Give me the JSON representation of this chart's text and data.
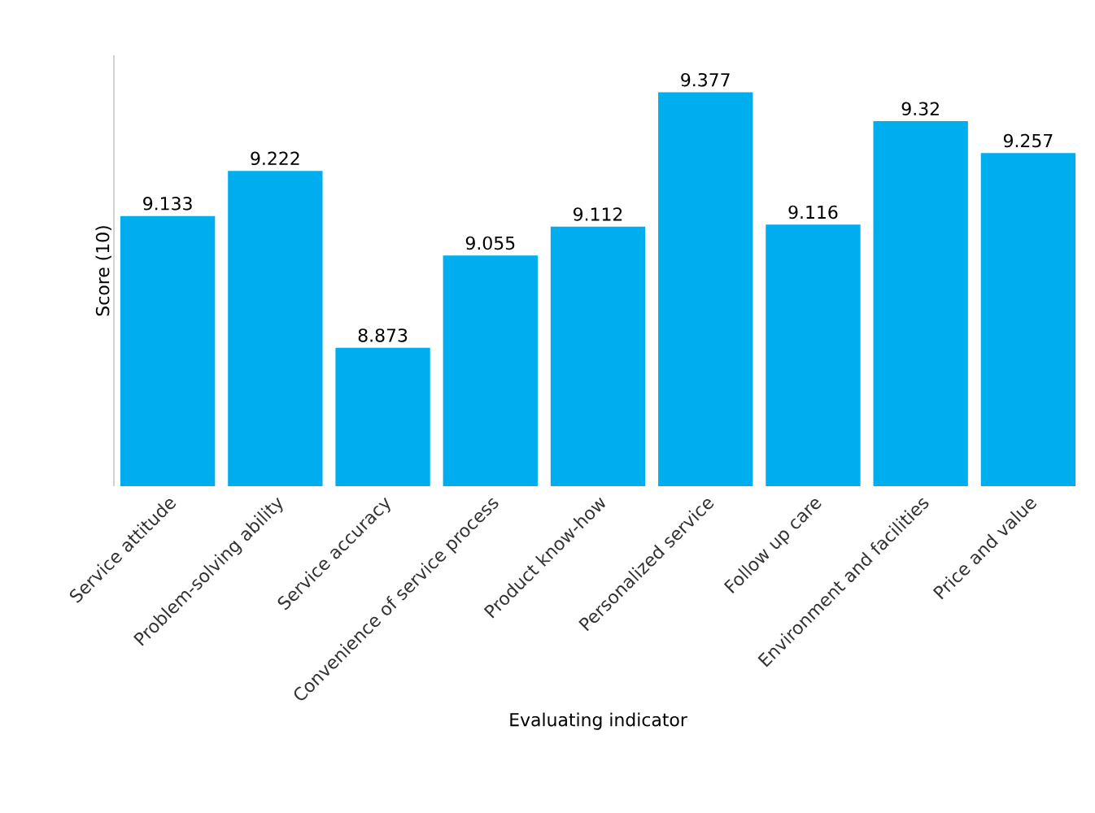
{
  "chart_data": {
    "type": "bar",
    "xlabel": "Evaluating indicator",
    "ylabel": "Score (10)",
    "categories": [
      "Service attitude",
      "Problem-solving ability",
      "Service accuracy",
      "Convenience of service process",
      "Product know-how",
      "Personalized service",
      "Follow up care",
      "Environment and facilities",
      "Price and value"
    ],
    "values": [
      9.133,
      9.222,
      8.873,
      9.055,
      9.112,
      9.377,
      9.116,
      9.32,
      9.257
    ],
    "color": "#00aeef",
    "ylim": [
      8.6,
      9.45
    ],
    "data_labels": true
  }
}
